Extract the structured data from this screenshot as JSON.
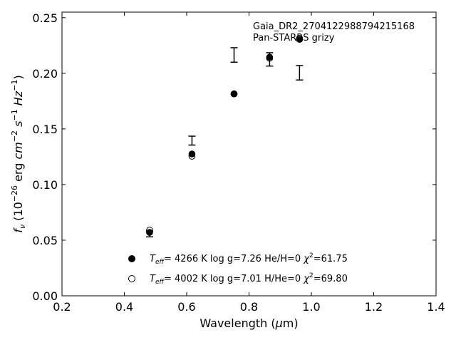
{
  "chart_data": {
    "type": "scatter",
    "title": "",
    "annotations": [
      "Gaia_DR2_2704122988794215168",
      "Pan-STARRS grizy"
    ],
    "xlabel": {
      "prefix": "Wavelength (",
      "greek": "μ",
      "suffix": "m)"
    },
    "ylabel": {
      "sym": "f",
      "sub": "ν",
      "open": " (10",
      "exp1": "−26",
      "mid": " erg ",
      "cm": "cm",
      "exp2": "−2",
      "s": "s",
      "exp3": "−1",
      "hz": "Hz",
      "exp4": "−1",
      "close": ")"
    },
    "xlim": [
      0.2,
      1.4
    ],
    "ylim": [
      0.0,
      0.255
    ],
    "xticks": [
      0.2,
      0.4,
      0.6,
      0.8,
      1.0,
      1.2,
      1.4
    ],
    "xtick_labels": [
      "0.2",
      "0.4",
      "0.6",
      "0.8",
      "1.0",
      "1.2",
      "1.4"
    ],
    "yticks": [
      0.0,
      0.05,
      0.1,
      0.15,
      0.2,
      0.25
    ],
    "ytick_labels": [
      "0.00",
      "0.05",
      "0.10",
      "0.15",
      "0.20",
      "0.25"
    ],
    "grid": false,
    "legend_position": "lower-center",
    "observed": {
      "x": [
        0.481,
        0.617,
        0.752,
        0.866,
        0.962
      ],
      "y": [
        0.0555,
        0.1395,
        0.2165,
        0.2125,
        0.2005
      ],
      "err": [
        0.0025,
        0.004,
        0.0065,
        0.006,
        0.0065
      ]
    },
    "series": [
      {
        "marker": "filled",
        "label": {
          "T": "T",
          "sub": "eff",
          "rest": "=  4266 K  log g=7.26  He/H=0  ",
          "chi": "χ",
          "sup": "2",
          "end": "=61.75"
        },
        "x": [
          0.481,
          0.617,
          0.752,
          0.866,
          0.962
        ],
        "y": [
          0.057,
          0.1275,
          0.1815,
          0.2145,
          0.2305
        ]
      },
      {
        "marker": "open",
        "label": {
          "T": "T",
          "sub": "eff",
          "rest": "=  4002 K  log g=7.01  H/He=0  ",
          "chi": "χ",
          "sup": "2",
          "end": "=69.80"
        },
        "x": [
          0.481,
          0.617,
          0.752,
          0.866,
          0.962
        ],
        "y": [
          0.059,
          0.1255,
          0.1815,
          0.2135,
          0.2315
        ]
      }
    ]
  }
}
